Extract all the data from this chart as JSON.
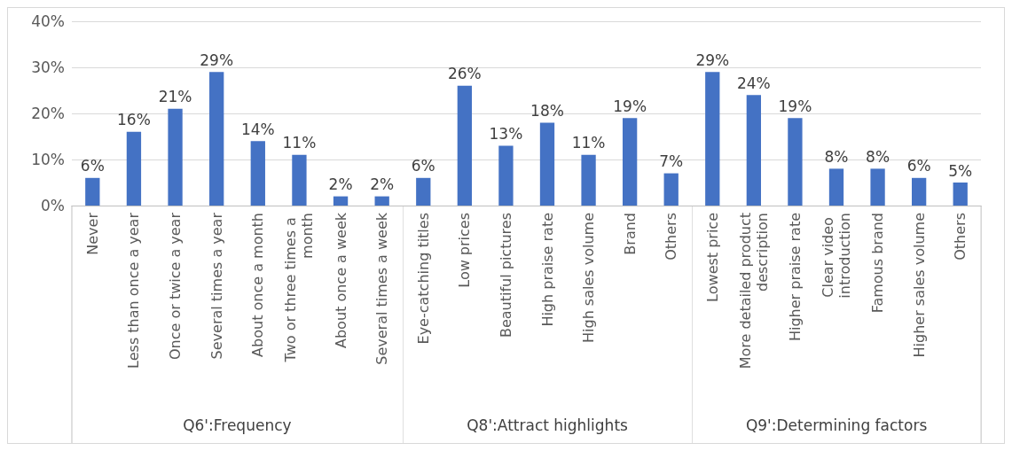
{
  "chart_data": [
    {
      "type": "bar",
      "xlabel": "Q6':Frequency",
      "categories": [
        "Never",
        "Less than once a year",
        "Once or twice a year",
        "Several times a year",
        "About once a month",
        "Two or three times a month",
        "About once a week",
        "Several times a week"
      ],
      "values": [
        6,
        16,
        21,
        29,
        14,
        11,
        2,
        2
      ],
      "value_labels": [
        "6%",
        "16%",
        "21%",
        "29%",
        "14%",
        "11%",
        "2%",
        "2%"
      ],
      "color": "#4472c4",
      "ylim": [
        0,
        40
      ],
      "yticks": [
        {
          "value": 0,
          "label": "0%"
        },
        {
          "value": 10,
          "label": "10%"
        },
        {
          "value": 20,
          "label": "20%"
        },
        {
          "value": 30,
          "label": "30%"
        },
        {
          "value": 40,
          "label": "40%"
        }
      ],
      "grid": "y"
    },
    {
      "type": "bar",
      "xlabel": "Q8':Attract highlights",
      "categories": [
        "Eye-catching titles",
        "Low prices",
        "Beautiful pictures",
        "High praise rate",
        "High sales volume",
        "Brand",
        "Others"
      ],
      "values": [
        6,
        26,
        13,
        18,
        11,
        19,
        7
      ],
      "value_labels": [
        "6%",
        "26%",
        "13%",
        "18%",
        "11%",
        "19%",
        "7%"
      ],
      "color": "#4472c4",
      "ylim": [
        0,
        40
      ],
      "yticks": [
        0,
        10,
        20,
        30,
        40
      ],
      "grid": "y",
      "tick_labels": "x"
    },
    {
      "type": "bar",
      "xlabel": "Q9':Determining factors",
      "categories": [
        "Lowest price",
        "More detailed product description",
        "Higher praise rate",
        "Clear video introduction",
        "Famous brand",
        "Higher sales volume",
        "Others"
      ],
      "values": [
        29,
        24,
        19,
        8,
        8,
        6,
        5
      ],
      "value_labels": [
        "29%",
        "24%",
        "19%",
        "8%",
        "8%",
        "6%",
        "5%"
      ],
      "color": "#4472c4",
      "ylim": [
        0,
        40
      ],
      "yticks": [
        0,
        10,
        20,
        30,
        40
      ],
      "grid": "y",
      "tick_labels": "x"
    }
  ]
}
